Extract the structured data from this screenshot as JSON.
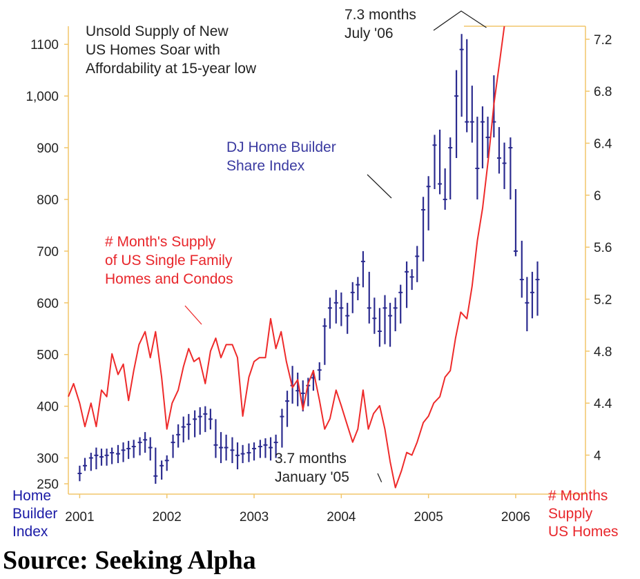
{
  "source": "Source: Seeking Alpha",
  "colors": {
    "home_builder": "#2b2b8f",
    "supply": "#ee2a2a",
    "axis": "#f2c66a",
    "text": "#222222"
  },
  "chart_data": {
    "type": "line",
    "title": "Unsold Supply of New US Homes Soar with Affordability at 15-year low",
    "title_lines": [
      "Unsold Supply of New",
      "US Homes Soar with",
      "Affordability at 15-year low"
    ],
    "x_ticks": [
      "2001",
      "2002",
      "2003",
      "2004",
      "2005",
      "2006"
    ],
    "x_range": [
      2000.87,
      2006.8
    ],
    "left_axis": {
      "label_lines": [
        "Home",
        "Builder",
        "Index"
      ],
      "ticks": [
        "1100",
        "1,000",
        "900",
        "800",
        "700",
        "600",
        "500",
        "400",
        "300",
        "250"
      ],
      "tick_values": [
        1100,
        1000,
        900,
        800,
        700,
        600,
        500,
        400,
        300,
        250
      ],
      "range": [
        230,
        1135
      ]
    },
    "right_axis": {
      "label_lines": [
        "# Months",
        "Supply",
        "US Homes"
      ],
      "ticks": [
        "7.2",
        "6.8",
        "6.4",
        "6",
        "5.6",
        "5.2",
        "4.8",
        "4.4",
        "4"
      ],
      "tick_values": [
        7.2,
        6.8,
        6.4,
        6.0,
        5.6,
        5.2,
        4.8,
        4.4,
        4.0
      ],
      "range": [
        3.7,
        7.3
      ]
    },
    "annotations": {
      "peak": [
        "7.3 months",
        "July '06"
      ],
      "trough": [
        "3.7 months",
        "January '05"
      ],
      "home_builder_label": [
        "DJ Home Builder",
        "Share Index"
      ],
      "supply_label": [
        "# Month's Supply",
        "of US Single Family",
        "Homes and Condos"
      ]
    },
    "series": [
      {
        "name": "DJ Home Builder Share Index",
        "axis": "left",
        "style": "hlc_bars",
        "points": [
          {
            "x": 2001.0,
            "low": 255,
            "high": 285,
            "close": 270
          },
          {
            "x": 2001.06,
            "low": 275,
            "high": 300,
            "close": 285
          },
          {
            "x": 2001.13,
            "low": 275,
            "high": 310,
            "close": 300
          },
          {
            "x": 2001.19,
            "low": 278,
            "high": 320,
            "close": 305
          },
          {
            "x": 2001.25,
            "low": 285,
            "high": 318,
            "close": 302
          },
          {
            "x": 2001.31,
            "low": 285,
            "high": 318,
            "close": 305
          },
          {
            "x": 2001.37,
            "low": 288,
            "high": 320,
            "close": 310
          },
          {
            "x": 2001.44,
            "low": 290,
            "high": 325,
            "close": 308
          },
          {
            "x": 2001.5,
            "low": 292,
            "high": 330,
            "close": 315
          },
          {
            "x": 2001.56,
            "low": 298,
            "high": 333,
            "close": 318
          },
          {
            "x": 2001.62,
            "low": 300,
            "high": 335,
            "close": 322
          },
          {
            "x": 2001.69,
            "low": 305,
            "high": 340,
            "close": 330
          },
          {
            "x": 2001.75,
            "low": 310,
            "high": 350,
            "close": 335
          },
          {
            "x": 2001.81,
            "low": 295,
            "high": 340,
            "close": 320
          },
          {
            "x": 2001.87,
            "low": 250,
            "high": 320,
            "close": 265
          },
          {
            "x": 2001.94,
            "low": 258,
            "high": 295,
            "close": 285
          },
          {
            "x": 2002.0,
            "low": 275,
            "high": 305,
            "close": 295
          },
          {
            "x": 2002.07,
            "low": 300,
            "high": 345,
            "close": 330
          },
          {
            "x": 2002.13,
            "low": 320,
            "high": 365,
            "close": 345
          },
          {
            "x": 2002.19,
            "low": 330,
            "high": 380,
            "close": 360
          },
          {
            "x": 2002.25,
            "low": 335,
            "high": 385,
            "close": 365
          },
          {
            "x": 2002.32,
            "low": 340,
            "high": 392,
            "close": 375
          },
          {
            "x": 2002.38,
            "low": 345,
            "high": 398,
            "close": 380
          },
          {
            "x": 2002.44,
            "low": 350,
            "high": 400,
            "close": 385
          },
          {
            "x": 2002.5,
            "low": 355,
            "high": 395,
            "close": 375
          },
          {
            "x": 2002.56,
            "low": 300,
            "high": 375,
            "close": 325
          },
          {
            "x": 2002.62,
            "low": 290,
            "high": 350,
            "close": 320
          },
          {
            "x": 2002.68,
            "low": 295,
            "high": 345,
            "close": 320
          },
          {
            "x": 2002.75,
            "low": 290,
            "high": 340,
            "close": 315
          },
          {
            "x": 2002.81,
            "low": 278,
            "high": 330,
            "close": 305
          },
          {
            "x": 2002.87,
            "low": 290,
            "high": 325,
            "close": 308
          },
          {
            "x": 2002.94,
            "low": 292,
            "high": 328,
            "close": 310
          },
          {
            "x": 2003.0,
            "low": 295,
            "high": 330,
            "close": 318
          },
          {
            "x": 2003.07,
            "low": 300,
            "high": 335,
            "close": 322
          },
          {
            "x": 2003.13,
            "low": 300,
            "high": 338,
            "close": 325
          },
          {
            "x": 2003.19,
            "low": 295,
            "high": 340,
            "close": 320
          },
          {
            "x": 2003.25,
            "low": 300,
            "high": 345,
            "close": 330
          },
          {
            "x": 2003.32,
            "low": 320,
            "high": 395,
            "close": 380
          },
          {
            "x": 2003.38,
            "low": 360,
            "high": 430,
            "close": 410
          },
          {
            "x": 2003.44,
            "low": 405,
            "high": 478,
            "close": 440
          },
          {
            "x": 2003.5,
            "low": 400,
            "high": 465,
            "close": 430
          },
          {
            "x": 2003.56,
            "low": 390,
            "high": 450,
            "close": 425
          },
          {
            "x": 2003.62,
            "low": 400,
            "high": 455,
            "close": 440
          },
          {
            "x": 2003.68,
            "low": 430,
            "high": 470,
            "close": 455
          },
          {
            "x": 2003.75,
            "low": 450,
            "high": 485,
            "close": 470
          },
          {
            "x": 2003.81,
            "low": 480,
            "high": 570,
            "close": 555
          },
          {
            "x": 2003.87,
            "low": 550,
            "high": 610,
            "close": 590
          },
          {
            "x": 2003.94,
            "low": 560,
            "high": 625,
            "close": 600
          },
          {
            "x": 2004.0,
            "low": 555,
            "high": 620,
            "close": 590
          },
          {
            "x": 2004.07,
            "low": 540,
            "high": 600,
            "close": 575
          },
          {
            "x": 2004.13,
            "low": 580,
            "high": 640,
            "close": 620
          },
          {
            "x": 2004.19,
            "low": 605,
            "high": 650,
            "close": 635
          },
          {
            "x": 2004.25,
            "low": 630,
            "high": 700,
            "close": 680
          },
          {
            "x": 2004.32,
            "low": 560,
            "high": 660,
            "close": 590
          },
          {
            "x": 2004.38,
            "low": 540,
            "high": 610,
            "close": 570
          },
          {
            "x": 2004.44,
            "low": 515,
            "high": 590,
            "close": 545
          },
          {
            "x": 2004.5,
            "low": 520,
            "high": 615,
            "close": 590
          },
          {
            "x": 2004.56,
            "low": 515,
            "high": 600,
            "close": 575
          },
          {
            "x": 2004.62,
            "low": 545,
            "high": 610,
            "close": 590
          },
          {
            "x": 2004.68,
            "low": 560,
            "high": 635,
            "close": 620
          },
          {
            "x": 2004.75,
            "low": 590,
            "high": 680,
            "close": 660
          },
          {
            "x": 2004.81,
            "low": 625,
            "high": 665,
            "close": 650
          },
          {
            "x": 2004.87,
            "low": 640,
            "high": 710,
            "close": 690
          },
          {
            "x": 2004.94,
            "low": 680,
            "high": 805,
            "close": 780
          },
          {
            "x": 2005.0,
            "low": 740,
            "high": 845,
            "close": 825
          },
          {
            "x": 2005.07,
            "low": 820,
            "high": 925,
            "close": 905
          },
          {
            "x": 2005.13,
            "low": 810,
            "high": 935,
            "close": 830
          },
          {
            "x": 2005.19,
            "low": 780,
            "high": 860,
            "close": 800
          },
          {
            "x": 2005.25,
            "low": 800,
            "high": 920,
            "close": 900
          },
          {
            "x": 2005.32,
            "low": 880,
            "high": 1050,
            "close": 1000
          },
          {
            "x": 2005.38,
            "low": 960,
            "high": 1120,
            "close": 1090
          },
          {
            "x": 2005.44,
            "low": 930,
            "high": 1110,
            "close": 950
          },
          {
            "x": 2005.5,
            "low": 910,
            "high": 1020,
            "close": 950
          },
          {
            "x": 2005.56,
            "low": 800,
            "high": 960,
            "close": 860
          },
          {
            "x": 2005.62,
            "low": 860,
            "high": 980,
            "close": 950
          },
          {
            "x": 2005.68,
            "low": 880,
            "high": 960,
            "close": 920
          },
          {
            "x": 2005.75,
            "low": 920,
            "high": 1040,
            "close": 950
          },
          {
            "x": 2005.81,
            "low": 850,
            "high": 940,
            "close": 880
          },
          {
            "x": 2005.87,
            "low": 820,
            "high": 910,
            "close": 870
          },
          {
            "x": 2005.94,
            "low": 800,
            "high": 920,
            "close": 900
          },
          {
            "x": 2006.0,
            "low": 690,
            "high": 820,
            "close": 700
          },
          {
            "x": 2006.07,
            "low": 610,
            "high": 720,
            "close": 645
          },
          {
            "x": 2006.13,
            "low": 545,
            "high": 650,
            "close": 600
          },
          {
            "x": 2006.19,
            "low": 570,
            "high": 660,
            "close": 620
          },
          {
            "x": 2006.25,
            "low": 575,
            "high": 680,
            "close": 645
          }
        ]
      },
      {
        "name": "# Month's Supply of US Single Family Homes and Condos",
        "axis": "right",
        "style": "line",
        "points": [
          {
            "x": 2000.87,
            "y": 4.45
          },
          {
            "x": 2000.93,
            "y": 4.55
          },
          {
            "x": 2001.0,
            "y": 4.4
          },
          {
            "x": 2001.06,
            "y": 4.22
          },
          {
            "x": 2001.13,
            "y": 4.4
          },
          {
            "x": 2001.19,
            "y": 4.22
          },
          {
            "x": 2001.25,
            "y": 4.5
          },
          {
            "x": 2001.31,
            "y": 4.45
          },
          {
            "x": 2001.37,
            "y": 4.78
          },
          {
            "x": 2001.44,
            "y": 4.62
          },
          {
            "x": 2001.5,
            "y": 4.7
          },
          {
            "x": 2001.56,
            "y": 4.42
          },
          {
            "x": 2001.62,
            "y": 4.65
          },
          {
            "x": 2001.68,
            "y": 4.85
          },
          {
            "x": 2001.75,
            "y": 4.95
          },
          {
            "x": 2001.81,
            "y": 4.75
          },
          {
            "x": 2001.87,
            "y": 4.95
          },
          {
            "x": 2001.94,
            "y": 4.6
          },
          {
            "x": 2002.0,
            "y": 4.2
          },
          {
            "x": 2002.06,
            "y": 4.4
          },
          {
            "x": 2002.13,
            "y": 4.5
          },
          {
            "x": 2002.19,
            "y": 4.68
          },
          {
            "x": 2002.25,
            "y": 4.82
          },
          {
            "x": 2002.31,
            "y": 4.72
          },
          {
            "x": 2002.37,
            "y": 4.75
          },
          {
            "x": 2002.44,
            "y": 4.55
          },
          {
            "x": 2002.5,
            "y": 4.8
          },
          {
            "x": 2002.56,
            "y": 4.9
          },
          {
            "x": 2002.62,
            "y": 4.75
          },
          {
            "x": 2002.68,
            "y": 4.85
          },
          {
            "x": 2002.75,
            "y": 4.85
          },
          {
            "x": 2002.81,
            "y": 4.75
          },
          {
            "x": 2002.87,
            "y": 4.3
          },
          {
            "x": 2002.94,
            "y": 4.6
          },
          {
            "x": 2003.0,
            "y": 4.72
          },
          {
            "x": 2003.06,
            "y": 4.75
          },
          {
            "x": 2003.13,
            "y": 4.75
          },
          {
            "x": 2003.19,
            "y": 5.05
          },
          {
            "x": 2003.25,
            "y": 4.82
          },
          {
            "x": 2003.31,
            "y": 4.95
          },
          {
            "x": 2003.37,
            "y": 4.72
          },
          {
            "x": 2003.44,
            "y": 4.52
          },
          {
            "x": 2003.5,
            "y": 4.58
          },
          {
            "x": 2003.56,
            "y": 4.35
          },
          {
            "x": 2003.62,
            "y": 4.55
          },
          {
            "x": 2003.68,
            "y": 4.65
          },
          {
            "x": 2003.75,
            "y": 4.42
          },
          {
            "x": 2003.81,
            "y": 4.2
          },
          {
            "x": 2003.87,
            "y": 4.28
          },
          {
            "x": 2003.94,
            "y": 4.5
          },
          {
            "x": 2004.0,
            "y": 4.38
          },
          {
            "x": 2004.06,
            "y": 4.25
          },
          {
            "x": 2004.13,
            "y": 4.1
          },
          {
            "x": 2004.19,
            "y": 4.2
          },
          {
            "x": 2004.25,
            "y": 4.5
          },
          {
            "x": 2004.31,
            "y": 4.2
          },
          {
            "x": 2004.37,
            "y": 4.32
          },
          {
            "x": 2004.44,
            "y": 4.38
          },
          {
            "x": 2004.5,
            "y": 4.2
          },
          {
            "x": 2004.56,
            "y": 3.95
          },
          {
            "x": 2004.62,
            "y": 3.75
          },
          {
            "x": 2004.69,
            "y": 3.88
          },
          {
            "x": 2004.75,
            "y": 4.02
          },
          {
            "x": 2004.81,
            "y": 4.0
          },
          {
            "x": 2004.87,
            "y": 4.1
          },
          {
            "x": 2004.94,
            "y": 4.25
          },
          {
            "x": 2005.0,
            "y": 4.3
          },
          {
            "x": 2005.06,
            "y": 4.4
          },
          {
            "x": 2005.13,
            "y": 4.45
          },
          {
            "x": 2005.19,
            "y": 4.6
          },
          {
            "x": 2005.25,
            "y": 4.65
          },
          {
            "x": 2005.31,
            "y": 4.9
          },
          {
            "x": 2005.37,
            "y": 5.1
          },
          {
            "x": 2005.44,
            "y": 5.05
          },
          {
            "x": 2005.5,
            "y": 5.3
          },
          {
            "x": 2005.56,
            "y": 5.65
          },
          {
            "x": 2005.62,
            "y": 5.9
          },
          {
            "x": 2005.69,
            "y": 6.3
          },
          {
            "x": 2005.75,
            "y": 6.7
          },
          {
            "x": 2005.81,
            "y": 7.0
          },
          {
            "x": 2005.87,
            "y": 7.3
          }
        ]
      }
    ]
  }
}
